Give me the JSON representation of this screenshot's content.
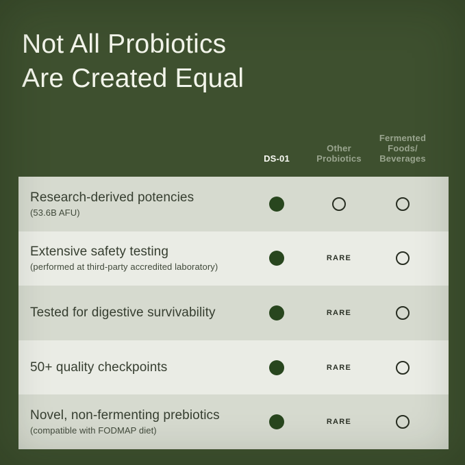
{
  "header": {
    "title_line1": "Not All Probiotics",
    "title_line2": "Are Created Equal"
  },
  "table": {
    "columns": [
      {
        "label_lines": [
          "DS-01"
        ],
        "emphasis": true
      },
      {
        "label_lines": [
          "Other",
          "Probiotics"
        ],
        "emphasis": false
      },
      {
        "label_lines": [
          "Fermented",
          "Foods/",
          "Beverages"
        ],
        "emphasis": false
      }
    ],
    "rare_label": "RARE",
    "rows": [
      {
        "title": "Research-derived potencies",
        "subtitle": "(53.6B AFU)",
        "marks": [
          "filled",
          "empty",
          "empty"
        ]
      },
      {
        "title": "Extensive safety testing",
        "subtitle": "(performed at third-party accredited laboratory)",
        "marks": [
          "filled",
          "rare",
          "empty"
        ]
      },
      {
        "title": "Tested for digestive survivability",
        "subtitle": "",
        "marks": [
          "filled",
          "rare",
          "empty"
        ]
      },
      {
        "title": "50+ quality checkpoints",
        "subtitle": "",
        "marks": [
          "filled",
          "rare",
          "empty"
        ]
      },
      {
        "title": "Novel, non-fermenting prebiotics",
        "subtitle": "(compatible with FODMAP diet)",
        "marks": [
          "filled",
          "rare",
          "empty"
        ]
      }
    ]
  },
  "chart_data": {
    "type": "table",
    "title": "Not All Probiotics Are Created Equal",
    "columns": [
      "DS-01",
      "Other Probiotics",
      "Fermented Foods/Beverages"
    ],
    "rows": [
      {
        "feature": "Research-derived potencies (53.6B AFU)",
        "values": [
          "yes",
          "no",
          "no"
        ]
      },
      {
        "feature": "Extensive safety testing (performed at third-party accredited laboratory)",
        "values": [
          "yes",
          "rare",
          "no"
        ]
      },
      {
        "feature": "Tested for digestive survivability",
        "values": [
          "yes",
          "rare",
          "no"
        ]
      },
      {
        "feature": "50+ quality checkpoints",
        "values": [
          "yes",
          "rare",
          "no"
        ]
      },
      {
        "feature": "Novel, non-fermenting prebiotics (compatible with FODMAP diet)",
        "values": [
          "yes",
          "rare",
          "no"
        ]
      }
    ],
    "mark_legend": {
      "filled": "included (dark green dot)",
      "rare": "RARE (text)",
      "empty": "not included (outlined circle)"
    }
  },
  "colors": {
    "background": "#3e502f",
    "title_color": "#f3f5eb",
    "muted_header_color": "#9aa58f",
    "emphasis_header_color": "#fbfcf6",
    "row_odd_bg": "#d6dacf",
    "row_even_bg": "#eaece5",
    "row_title_color": "#363e30",
    "row_subtitle_color": "#414a3b",
    "dot_color": "#28461e",
    "ring_color": "#272d21",
    "rare_color": "#2b3126"
  }
}
